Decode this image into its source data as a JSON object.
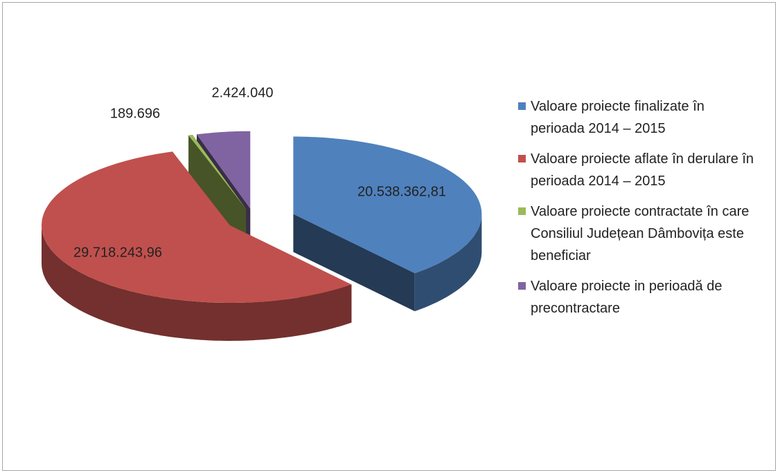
{
  "chart_data": {
    "type": "pie3d",
    "categories": [
      "Valoare proiecte finalizate în perioada 2014 – 2015",
      "Valoare proiecte aflate în derulare în perioada 2014 – 2015",
      "Valoare proiecte contractate în care Consiliul Județean Dâmbovița este beneficiar",
      "Valoare proiecte in perioadă de precontractare"
    ],
    "values": [
      20538362.81,
      29718243.96,
      189696,
      2424040
    ],
    "value_labels": [
      "20.538.362,81",
      "29.718.243,96",
      "189.696",
      "2.424.040"
    ],
    "colors": [
      "#4f81bd",
      "#c0504d",
      "#9bbb59",
      "#8064a2"
    ],
    "legend": "right"
  }
}
